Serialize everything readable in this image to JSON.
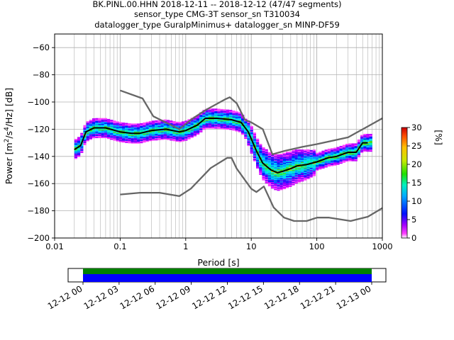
{
  "header": {
    "title_line1": "BK.PINL.00.HHN   2018-12-11 -- 2018-12-12  (47/47 segments)",
    "title_line2": "sensor_type CMG-3T sensor_sn T310034",
    "title_line3": "datalogger_type GuralpMinimus+ datalogger_sn MINP-DF59"
  },
  "chart_data": {
    "type": "heatmap",
    "title": "BK.PINL.00.HHN   2018-12-11 -- 2018-12-12  (47/47 segments)",
    "xlabel": "Period [s]",
    "ylabel": "Power [m²/s⁴/Hz] [dB]",
    "x_scale": "log",
    "xlim": [
      0.01,
      1000
    ],
    "ylim": [
      -200,
      -50
    ],
    "x_ticks": [
      0.01,
      0.1,
      1,
      10,
      100,
      1000
    ],
    "x_tick_labels": [
      "0.01",
      "0.1",
      "1",
      "10",
      "100",
      "1000"
    ],
    "y_ticks": [
      -200,
      -180,
      -160,
      -140,
      -120,
      -100,
      -80,
      -60
    ],
    "y_tick_labels": [
      "−200",
      "−180",
      "−160",
      "−140",
      "−120",
      "−100",
      "−80",
      "−60"
    ],
    "grid": true,
    "colorbar": {
      "label": "[%]",
      "range": [
        0,
        30
      ],
      "ticks": [
        0,
        5,
        10,
        15,
        20,
        25,
        30
      ],
      "tick_labels": [
        "0",
        "5",
        "10",
        "15",
        "20",
        "25",
        "30"
      ]
    },
    "series": [
      {
        "kind": "mode_line",
        "color": "#000000",
        "x": [
          0.02,
          0.025,
          0.03,
          0.04,
          0.06,
          0.1,
          0.15,
          0.2,
          0.3,
          0.5,
          0.8,
          1.0,
          1.5,
          2.0,
          3.0,
          5.0,
          7.0,
          9.0,
          12,
          15,
          20,
          25,
          30,
          40,
          50,
          70,
          100,
          150,
          200,
          300,
          400,
          500,
          600
        ],
        "y": [
          -135,
          -132,
          -122,
          -119,
          -119,
          -122,
          -123,
          -123,
          -121,
          -120,
          -122,
          -121,
          -117,
          -112,
          -112,
          -113,
          -115,
          -122,
          -136,
          -145,
          -150,
          -152,
          -151,
          -149,
          -147,
          -146,
          -144,
          -141,
          -140,
          -137,
          -137,
          -130,
          -130
        ]
      },
      {
        "kind": "noise_model_high",
        "color": "#666666",
        "x": [
          0.1,
          0.22,
          0.32,
          0.8,
          1.2,
          2.0,
          4.0,
          4.7,
          6.0,
          8.0,
          10,
          15,
          21,
          32,
          60,
          100,
          300,
          1000
        ],
        "y": [
          -91.5,
          -97.4,
          -110.5,
          -120,
          -113,
          -106,
          -98,
          -96.5,
          -101,
          -113,
          -115,
          -120,
          -138.5,
          -136,
          -133,
          -131,
          -126,
          -112
        ]
      },
      {
        "kind": "noise_model_low",
        "color": "#666666",
        "x": [
          0.1,
          0.2,
          0.4,
          0.8,
          1.2,
          2.4,
          4.3,
          5.0,
          6.0,
          10,
          12,
          15.6,
          21.9,
          31.6,
          45,
          70,
          101,
          154,
          328,
          600,
          1000
        ],
        "y": [
          -168,
          -166.7,
          -166.7,
          -169.2,
          -163.7,
          -148.6,
          -141.1,
          -141.1,
          -149,
          -163.8,
          -166.2,
          -162.1,
          -177.5,
          -185,
          -187.5,
          -187.5,
          -185,
          -185,
          -187.5,
          -184.4,
          -178
        ]
      }
    ],
    "segments": "47/47",
    "time_axis": {
      "tick_labels": [
        "12-12 00",
        "12-12 03",
        "12-12 06",
        "12-12 09",
        "12-12 12",
        "12-12 15",
        "12-12 18",
        "12-12 21",
        "12-13 00"
      ],
      "coverage_colors": [
        "#008000",
        "#0000ff"
      ]
    }
  }
}
